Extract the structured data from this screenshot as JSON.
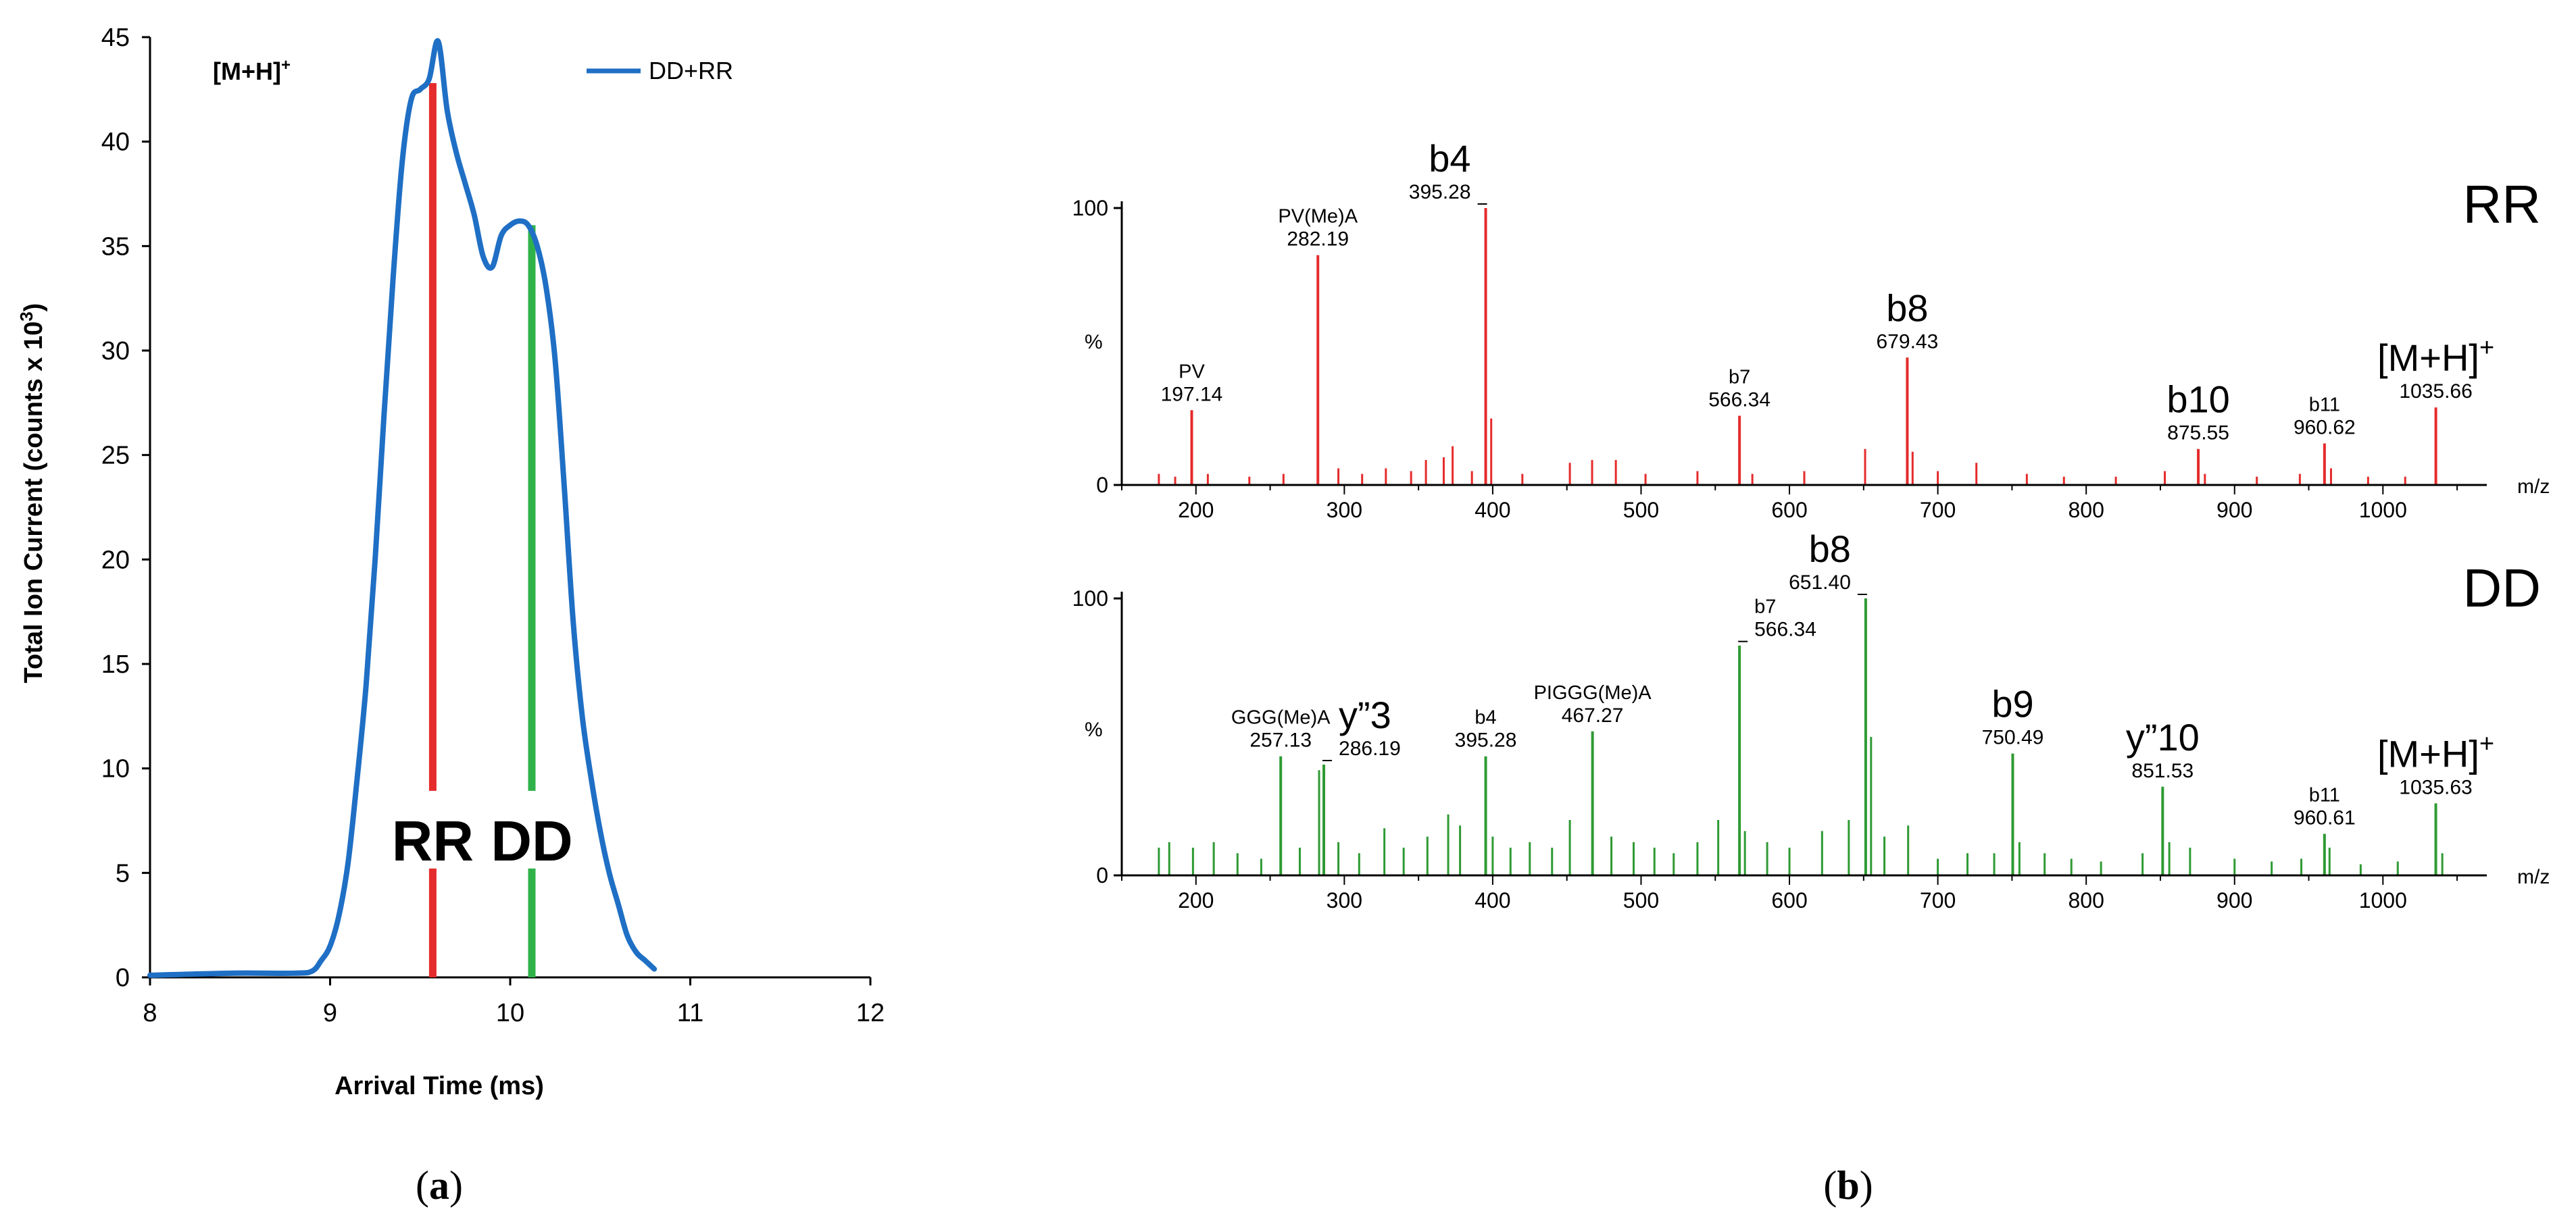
{
  "chart_data": [
    {
      "id": "a",
      "type": "line",
      "panel_label": "(a)",
      "panel_letter": "a",
      "title": "[M+H]",
      "title_sup": "+",
      "xlabel": "Arrival Time (ms)",
      "ylabel": "Total Ion Current (counts x 10",
      "ylabel_sup": "3",
      "ylabel_close": ")",
      "xlim": [
        8,
        12
      ],
      "ylim": [
        0,
        45
      ],
      "xticks": [
        8,
        9,
        10,
        11,
        12
      ],
      "yticks": [
        0,
        5,
        10,
        15,
        20,
        25,
        30,
        35,
        40,
        45
      ],
      "grid": false,
      "legend": {
        "position": "top-right",
        "entries": [
          "DD+RR"
        ]
      },
      "series": [
        {
          "name": "DD+RR",
          "color": "#1f6fc5",
          "x": [
            8.0,
            8.45,
            8.8,
            8.9,
            8.95,
            9.0,
            9.05,
            9.1,
            9.15,
            9.2,
            9.25,
            9.3,
            9.35,
            9.4,
            9.45,
            9.5,
            9.55,
            9.6,
            9.65,
            9.7,
            9.75,
            9.8,
            9.85,
            9.9,
            9.95,
            10.0,
            10.05,
            10.1,
            10.15,
            10.2,
            10.25,
            10.3,
            10.35,
            10.4,
            10.45,
            10.5,
            10.55,
            10.6,
            10.65,
            10.7,
            10.75,
            10.8
          ],
          "y": [
            0.1,
            0.2,
            0.2,
            0.3,
            0.8,
            1.5,
            3.0,
            5.5,
            9.5,
            14.0,
            20.0,
            27.0,
            33.5,
            39.0,
            42.0,
            42.5,
            43.0,
            44.8,
            41.5,
            39.5,
            38.0,
            36.5,
            34.5,
            34.0,
            35.5,
            36.0,
            36.2,
            36.0,
            35.0,
            33.0,
            29.5,
            23.5,
            17.0,
            12.5,
            9.5,
            7.0,
            5.0,
            3.5,
            2.0,
            1.2,
            0.8,
            0.4
          ]
        }
      ],
      "markers": [
        {
          "label": "RR",
          "x": 9.57,
          "y_top": 42.8,
          "color": "#e52b2b"
        },
        {
          "label": "DD",
          "x": 10.12,
          "y_top": 36.0,
          "color": "#2fb24a"
        }
      ],
      "marker_label_y": 6.5
    },
    {
      "id": "b-top",
      "type": "bar",
      "title": "RR",
      "color": "#e52b2b",
      "xlim": [
        150,
        1070
      ],
      "ylim": [
        0,
        100
      ],
      "xticks": [
        200,
        300,
        400,
        500,
        600,
        700,
        800,
        900,
        1000
      ],
      "yticks": [
        0,
        100
      ],
      "ytick_labels": [
        "0",
        "100"
      ],
      "ylabel": "%",
      "xunit": "m/z",
      "peaks": [
        {
          "mz": 197.14,
          "rel": 27
        },
        {
          "mz": 282.19,
          "rel": 83
        },
        {
          "mz": 395.28,
          "rel": 100
        },
        {
          "mz": 566.34,
          "rel": 25
        },
        {
          "mz": 679.43,
          "rel": 46
        },
        {
          "mz": 875.55,
          "rel": 13
        },
        {
          "mz": 960.62,
          "rel": 15
        },
        {
          "mz": 1035.66,
          "rel": 28
        }
      ],
      "minor_peaks": [
        {
          "mz": 175,
          "rel": 4
        },
        {
          "mz": 186,
          "rel": 3
        },
        {
          "mz": 208,
          "rel": 4
        },
        {
          "mz": 236,
          "rel": 3
        },
        {
          "mz": 259,
          "rel": 4
        },
        {
          "mz": 296,
          "rel": 6
        },
        {
          "mz": 312,
          "rel": 4
        },
        {
          "mz": 328,
          "rel": 6
        },
        {
          "mz": 345,
          "rel": 5
        },
        {
          "mz": 355,
          "rel": 9
        },
        {
          "mz": 367,
          "rel": 10
        },
        {
          "mz": 373,
          "rel": 14
        },
        {
          "mz": 386,
          "rel": 5
        },
        {
          "mz": 399,
          "rel": 24
        },
        {
          "mz": 420,
          "rel": 4
        },
        {
          "mz": 452,
          "rel": 8
        },
        {
          "mz": 467,
          "rel": 9
        },
        {
          "mz": 483,
          "rel": 9
        },
        {
          "mz": 503,
          "rel": 4
        },
        {
          "mz": 538,
          "rel": 5
        },
        {
          "mz": 575,
          "rel": 4
        },
        {
          "mz": 610,
          "rel": 5
        },
        {
          "mz": 651,
          "rel": 13
        },
        {
          "mz": 683,
          "rel": 12
        },
        {
          "mz": 700,
          "rel": 5
        },
        {
          "mz": 726,
          "rel": 8
        },
        {
          "mz": 760,
          "rel": 4
        },
        {
          "mz": 785,
          "rel": 3
        },
        {
          "mz": 820,
          "rel": 3
        },
        {
          "mz": 853,
          "rel": 5
        },
        {
          "mz": 880,
          "rel": 4
        },
        {
          "mz": 915,
          "rel": 3
        },
        {
          "mz": 944,
          "rel": 4
        },
        {
          "mz": 965,
          "rel": 6
        },
        {
          "mz": 990,
          "rel": 3
        },
        {
          "mz": 1015,
          "rel": 3
        }
      ],
      "annotations": [
        {
          "mz": 197.14,
          "label": "PV",
          "value": "197.14",
          "size": "small"
        },
        {
          "mz": 282.19,
          "label": "PV(Me)A",
          "value": "282.19",
          "size": "small"
        },
        {
          "mz": 395.28,
          "label": "b4",
          "value": "395.28",
          "size": "large",
          "anchor": "right"
        },
        {
          "mz": 566.34,
          "label": "b7",
          "value": "566.34",
          "size": "small"
        },
        {
          "mz": 679.43,
          "label": "b8",
          "value": "679.43",
          "size": "large"
        },
        {
          "mz": 875.55,
          "label": "b10",
          "value": "875.55",
          "size": "large"
        },
        {
          "mz": 960.62,
          "label": "b11",
          "value": "960.62",
          "size": "small"
        },
        {
          "mz": 1035.66,
          "label": "[M+H]",
          "label_sup": "+",
          "value": "1035.66",
          "size": "large"
        }
      ]
    },
    {
      "id": "b-bottom",
      "type": "bar",
      "title": "DD",
      "panel_label": "(b)",
      "panel_letter": "b",
      "color": "#2e9a33",
      "xlim": [
        150,
        1070
      ],
      "ylim": [
        0,
        100
      ],
      "xticks": [
        200,
        300,
        400,
        500,
        600,
        700,
        800,
        900,
        1000
      ],
      "yticks": [
        0,
        100
      ],
      "ytick_labels": [
        "0",
        "100"
      ],
      "ylabel": "%",
      "xunit": "m/z",
      "peaks": [
        {
          "mz": 257.13,
          "rel": 43
        },
        {
          "mz": 286.19,
          "rel": 40
        },
        {
          "mz": 395.28,
          "rel": 43
        },
        {
          "mz": 467.27,
          "rel": 52
        },
        {
          "mz": 566.34,
          "rel": 83
        },
        {
          "mz": 651.4,
          "rel": 100
        },
        {
          "mz": 750.49,
          "rel": 44
        },
        {
          "mz": 851.53,
          "rel": 32
        },
        {
          "mz": 960.61,
          "rel": 15
        },
        {
          "mz": 1035.63,
          "rel": 26
        }
      ],
      "minor_peaks": [
        {
          "mz": 175,
          "rel": 10
        },
        {
          "mz": 182,
          "rel": 12
        },
        {
          "mz": 198,
          "rel": 10
        },
        {
          "mz": 212,
          "rel": 12
        },
        {
          "mz": 228,
          "rel": 8
        },
        {
          "mz": 244,
          "rel": 6
        },
        {
          "mz": 270,
          "rel": 10
        },
        {
          "mz": 283,
          "rel": 38
        },
        {
          "mz": 296,
          "rel": 12
        },
        {
          "mz": 310,
          "rel": 8
        },
        {
          "mz": 327,
          "rel": 17
        },
        {
          "mz": 340,
          "rel": 10
        },
        {
          "mz": 356,
          "rel": 14
        },
        {
          "mz": 370,
          "rel": 22
        },
        {
          "mz": 378,
          "rel": 18
        },
        {
          "mz": 400,
          "rel": 14
        },
        {
          "mz": 412,
          "rel": 10
        },
        {
          "mz": 425,
          "rel": 12
        },
        {
          "mz": 440,
          "rel": 10
        },
        {
          "mz": 452,
          "rel": 20
        },
        {
          "mz": 480,
          "rel": 14
        },
        {
          "mz": 495,
          "rel": 12
        },
        {
          "mz": 509,
          "rel": 10
        },
        {
          "mz": 522,
          "rel": 8
        },
        {
          "mz": 538,
          "rel": 12
        },
        {
          "mz": 552,
          "rel": 20
        },
        {
          "mz": 570,
          "rel": 16
        },
        {
          "mz": 585,
          "rel": 12
        },
        {
          "mz": 600,
          "rel": 10
        },
        {
          "mz": 622,
          "rel": 16
        },
        {
          "mz": 640,
          "rel": 20
        },
        {
          "mz": 655,
          "rel": 50
        },
        {
          "mz": 664,
          "rel": 14
        },
        {
          "mz": 680,
          "rel": 18
        },
        {
          "mz": 700,
          "rel": 6
        },
        {
          "mz": 720,
          "rel": 8
        },
        {
          "mz": 738,
          "rel": 8
        },
        {
          "mz": 755,
          "rel": 12
        },
        {
          "mz": 772,
          "rel": 8
        },
        {
          "mz": 790,
          "rel": 6
        },
        {
          "mz": 810,
          "rel": 5
        },
        {
          "mz": 838,
          "rel": 8
        },
        {
          "mz": 856,
          "rel": 12
        },
        {
          "mz": 870,
          "rel": 10
        },
        {
          "mz": 900,
          "rel": 6
        },
        {
          "mz": 925,
          "rel": 5
        },
        {
          "mz": 945,
          "rel": 6
        },
        {
          "mz": 964,
          "rel": 10
        },
        {
          "mz": 985,
          "rel": 4
        },
        {
          "mz": 1010,
          "rel": 5
        },
        {
          "mz": 1040,
          "rel": 8
        }
      ],
      "annotations": [
        {
          "mz": 257.13,
          "label": "GGG(Me)A",
          "value": "257.13",
          "size": "small"
        },
        {
          "mz": 286.19,
          "label": "y”3",
          "value": "286.19",
          "size": "large",
          "anchor": "left"
        },
        {
          "mz": 395.28,
          "label": "b4",
          "value": "395.28",
          "size": "small"
        },
        {
          "mz": 467.27,
          "label": "PIGGG(Me)A",
          "value": "467.27",
          "size": "small"
        },
        {
          "mz": 566.34,
          "label": "b7",
          "value": "566.34",
          "size": "small",
          "anchor": "left"
        },
        {
          "mz": 651.4,
          "label": "b8",
          "value": "651.40",
          "size": "large",
          "anchor": "right"
        },
        {
          "mz": 750.49,
          "label": "b9",
          "value": "750.49",
          "size": "large"
        },
        {
          "mz": 851.53,
          "label": "y”10",
          "value": "851.53",
          "size": "large"
        },
        {
          "mz": 960.61,
          "label": "b11",
          "value": "960.61",
          "size": "small"
        },
        {
          "mz": 1035.63,
          "label": "[M+H]",
          "label_sup": "+",
          "value": "1035.63",
          "size": "large"
        }
      ]
    }
  ]
}
